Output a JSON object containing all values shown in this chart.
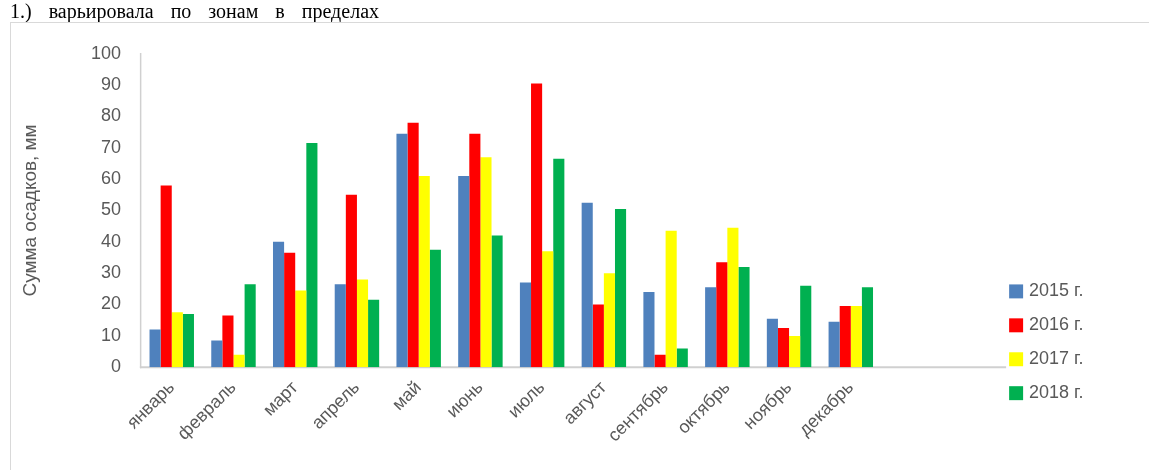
{
  "chart_data": {
    "type": "bar",
    "annotations": [
      "1.) варьировала по зонам в пределах"
    ],
    "ylabel": "Сумма осадков, мм",
    "categories": [
      "январь",
      "февраль",
      "март",
      "апрель",
      "май",
      "июнь",
      "июль",
      "август",
      "сентябрь",
      "октябрь",
      "ноябрь",
      "декабрь",
      null,
      null
    ],
    "series": [
      {
        "name": "2015 г.",
        "color": "#4f81bd",
        "values": [
          12,
          8.5,
          40,
          26.5,
          74.5,
          61,
          27,
          52.5,
          24,
          25.5,
          15.5,
          14.5,
          null,
          null
        ]
      },
      {
        "name": "2016 г.",
        "color": "#ff0000",
        "values": [
          58,
          16.5,
          36.5,
          55,
          78,
          74.5,
          90.5,
          20,
          4,
          33.5,
          12.5,
          19.5,
          null,
          null
        ]
      },
      {
        "name": "2017 г.",
        "color": "#ffff00",
        "values": [
          17.5,
          4,
          24.5,
          28,
          61,
          67,
          37,
          30,
          43.5,
          44.5,
          10,
          19.5,
          null,
          null
        ]
      },
      {
        "name": "2018 г.",
        "color": "#00b050",
        "values": [
          17,
          26.5,
          71.5,
          21.5,
          37.5,
          42,
          66.5,
          50.5,
          6,
          32,
          26,
          25.5,
          null,
          null
        ]
      }
    ],
    "ylim": [
      0,
      100
    ],
    "yticks": [
      0,
      10,
      20,
      30,
      40,
      50,
      60,
      70,
      80,
      90,
      100
    ],
    "legend": "right"
  }
}
